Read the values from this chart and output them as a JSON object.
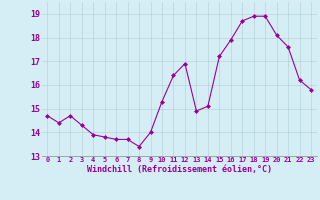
{
  "x": [
    0,
    1,
    2,
    3,
    4,
    5,
    6,
    7,
    8,
    9,
    10,
    11,
    12,
    13,
    14,
    15,
    16,
    17,
    18,
    19,
    20,
    21,
    22,
    23
  ],
  "y": [
    14.7,
    14.4,
    14.7,
    14.3,
    13.9,
    13.8,
    13.7,
    13.7,
    13.4,
    14.0,
    15.3,
    16.4,
    16.9,
    14.9,
    15.1,
    17.2,
    17.9,
    18.7,
    18.9,
    18.9,
    18.1,
    17.6,
    16.2,
    15.8
  ],
  "line_color": "#990099",
  "marker": "D",
  "marker_size": 2,
  "bg_color": "#d5eef5",
  "grid_color": "#aacccc",
  "xlabel": "Windchill (Refroidissement éolien,°C)",
  "xlabel_color": "#990099",
  "tick_color": "#990099",
  "ylim": [
    13,
    19.5
  ],
  "xlim": [
    -0.5,
    23.5
  ],
  "yticks": [
    13,
    14,
    15,
    16,
    17,
    18,
    19
  ],
  "xtick_labels": [
    "0",
    "1",
    "2",
    "3",
    "4",
    "5",
    "6",
    "7",
    "8",
    "9",
    "10",
    "11",
    "12",
    "13",
    "14",
    "15",
    "16",
    "17",
    "18",
    "19",
    "20",
    "21",
    "22",
    "23"
  ]
}
